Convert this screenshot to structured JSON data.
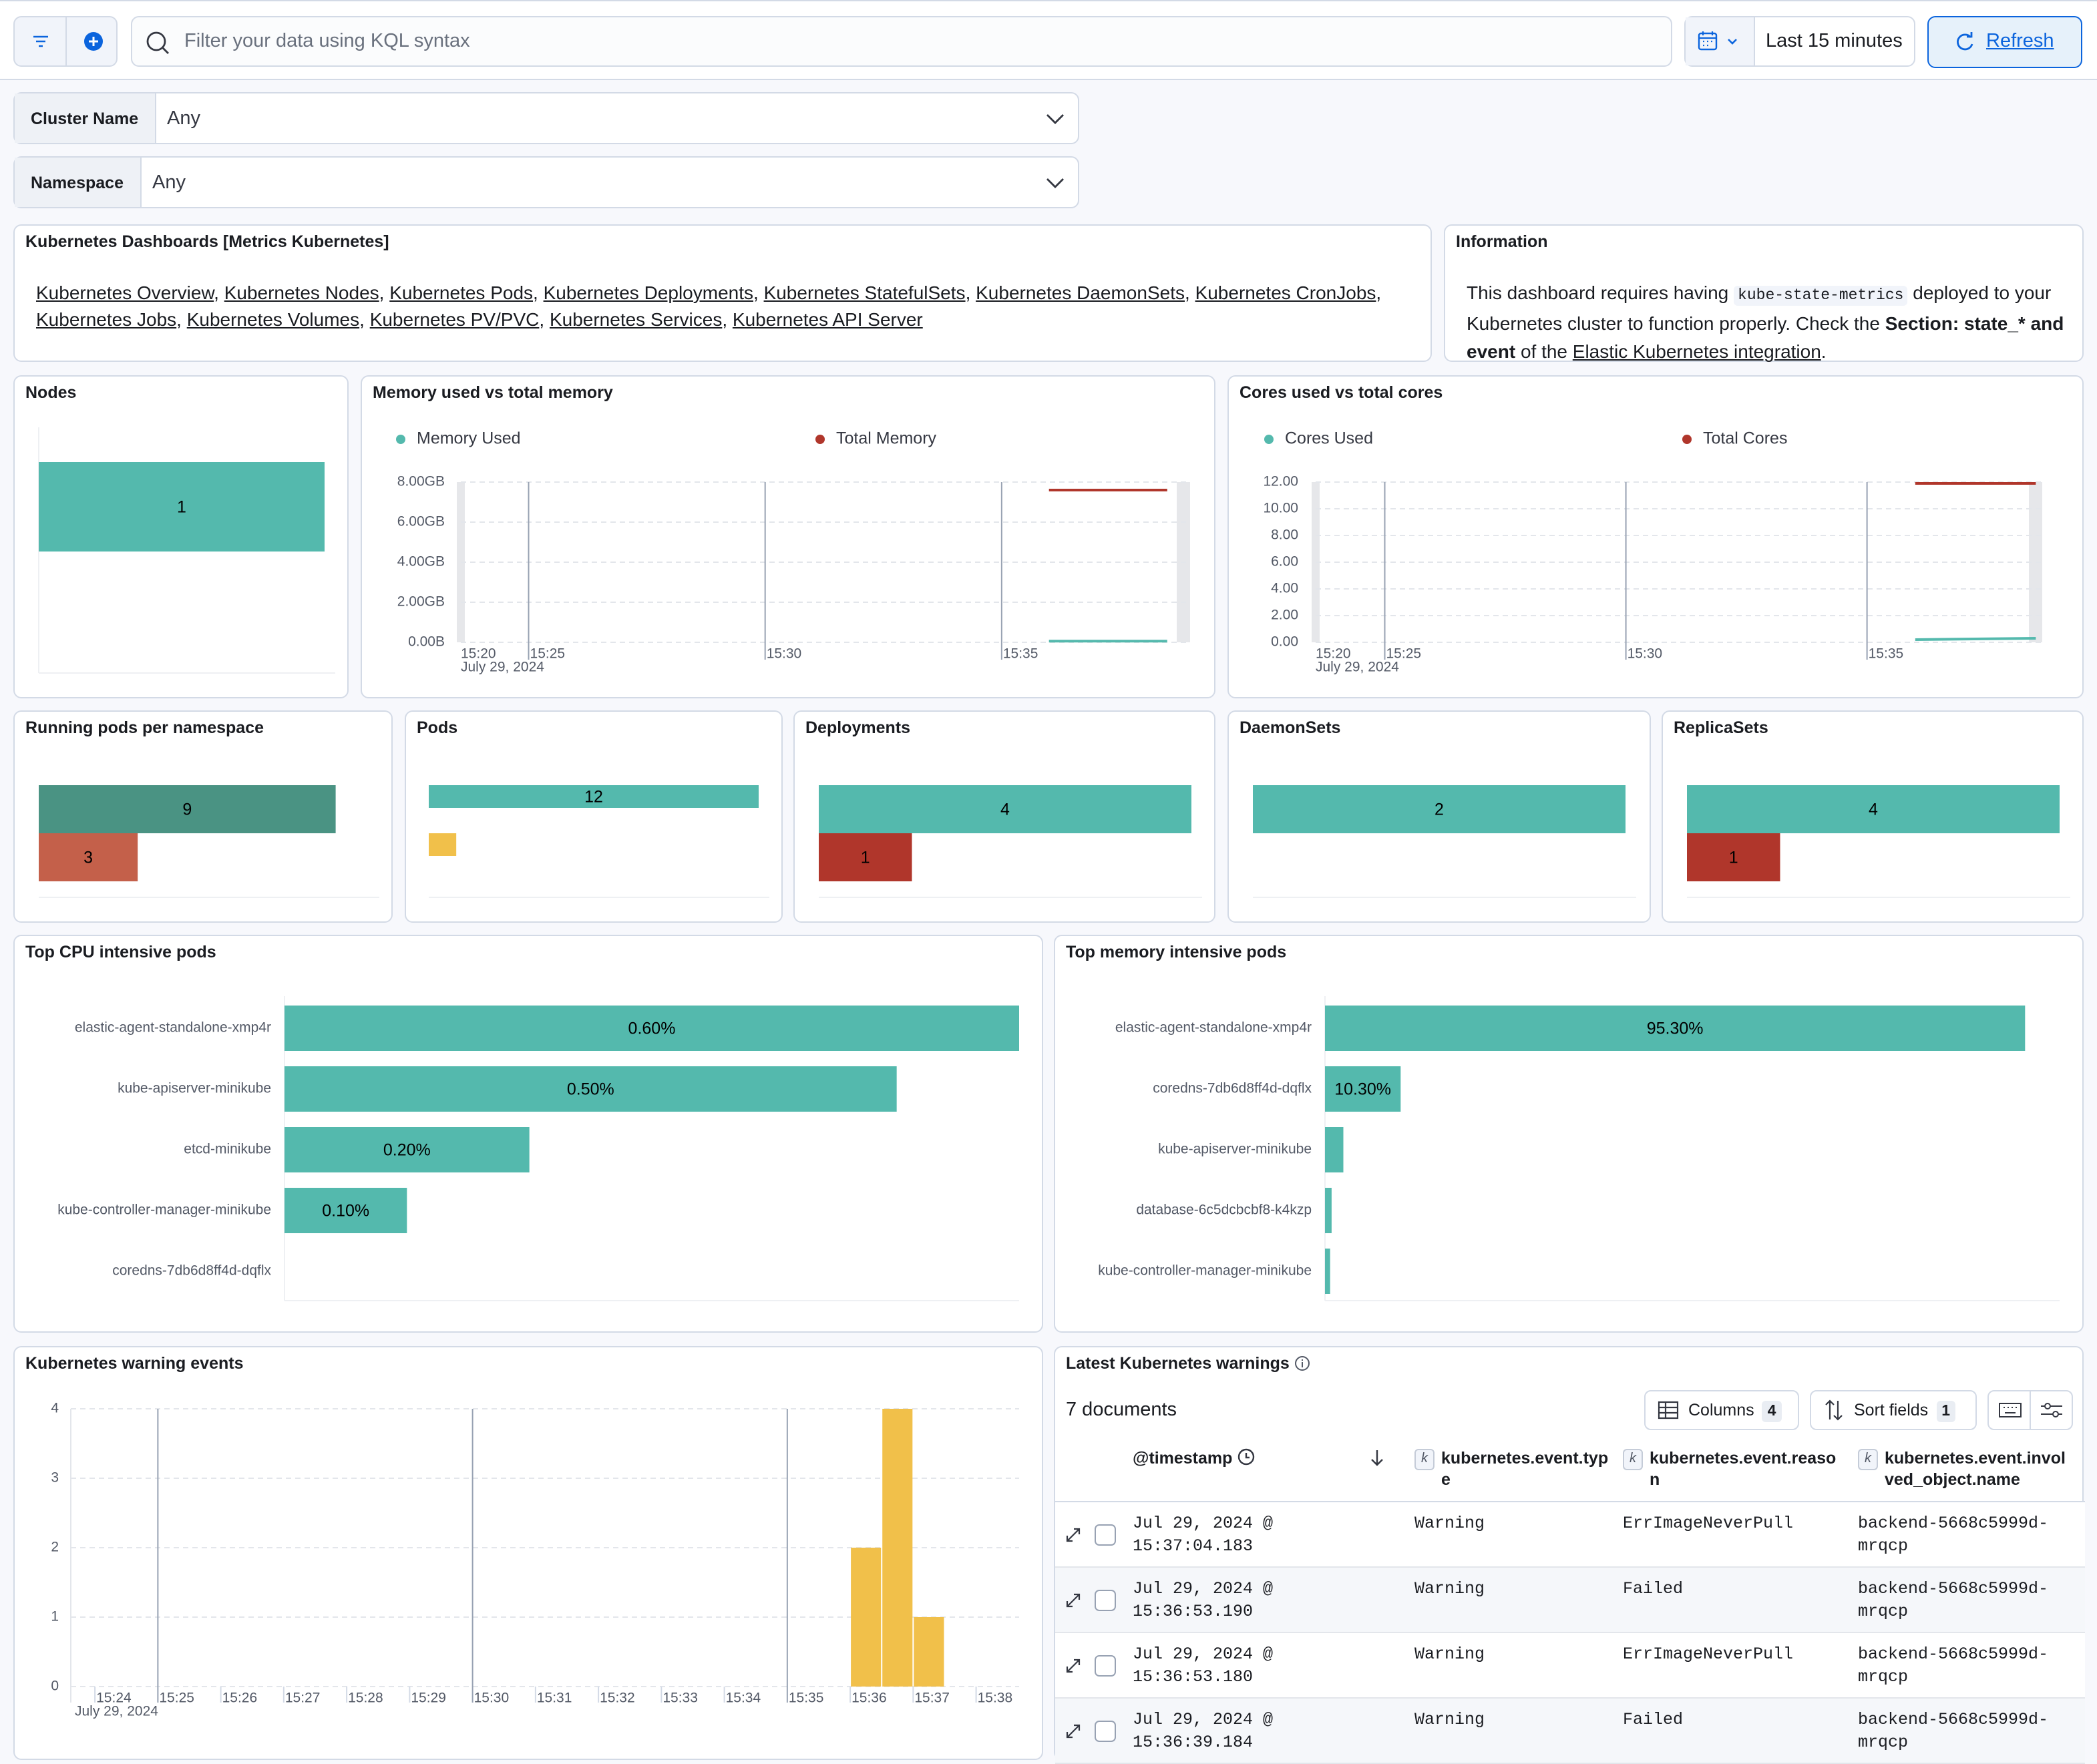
{
  "toolbar": {
    "query_placeholder": "Filter your data using KQL syntax",
    "time_range": "Last 15 minutes",
    "refresh": "Refresh"
  },
  "controls": [
    {
      "label": "Cluster Name",
      "value": "Any"
    },
    {
      "label": "Namespace",
      "value": "Any"
    }
  ],
  "dashboards_panel": {
    "title": "Kubernetes Dashboards [Metrics Kubernetes]",
    "separator": ",",
    "links": [
      "Kubernetes Overview",
      "Kubernetes Nodes",
      "Kubernetes Pods",
      "Kubernetes Deployments",
      "Kubernetes StatefulSets",
      "Kubernetes DaemonSets",
      "Kubernetes CronJobs",
      "Kubernetes Jobs",
      "Kubernetes Volumes",
      "Kubernetes PV/PVC",
      "Kubernetes Services",
      "Kubernetes API Server"
    ]
  },
  "info_panel": {
    "title": "Information",
    "text": [
      "This dashboard requires having",
      "kube-state-metrics",
      "deployed to your Kubernetes cluster to function properly. Check the",
      "Section: state_* and event",
      "of the",
      "Elastic Kubernetes integration",
      "."
    ]
  },
  "nodes_panel": {
    "title": "Nodes",
    "type": "bar",
    "values": [
      1
    ],
    "colors": [
      "#54b9ad"
    ],
    "xlim": [
      0,
      1
    ]
  },
  "memory_panel": {
    "title": "Memory used vs total memory",
    "type": "line",
    "x": [
      "15:36:00",
      "15:38:30"
    ],
    "xlim": [
      "15:23:34",
      "15:38:59"
    ],
    "x_start_label": "15:20",
    "xticks": [
      "15:25",
      "15:30",
      "15:35"
    ],
    "x_date": "July 29, 2024",
    "ylim": [
      0,
      8
    ],
    "yticks": [
      {
        "value": 0,
        "label": "0.00B"
      },
      {
        "value": 2,
        "label": "2.00GB"
      },
      {
        "value": 4,
        "label": "4.00GB"
      },
      {
        "value": 6,
        "label": "6.00GB"
      },
      {
        "value": 8,
        "label": "8.00GB"
      }
    ],
    "series": [
      {
        "name": "Memory Used",
        "color": "#54b9ad",
        "values": [
          0.06,
          0.06
        ]
      },
      {
        "name": "Total Memory",
        "color": "#b0362b",
        "values": [
          7.6,
          7.6
        ]
      }
    ]
  },
  "cores_panel": {
    "title": "Cores used vs total cores",
    "type": "line",
    "x": [
      "15:36:00",
      "15:38:30"
    ],
    "xlim": [
      "15:23:34",
      "15:38:38"
    ],
    "x_start_label": "15:20",
    "xticks": [
      "15:25",
      "15:30",
      "15:35"
    ],
    "x_date": "July 29, 2024",
    "ylim": [
      0,
      12
    ],
    "yticks": [
      {
        "value": 0,
        "label": "0.00"
      },
      {
        "value": 2,
        "label": "2.00"
      },
      {
        "value": 4,
        "label": "4.00"
      },
      {
        "value": 6,
        "label": "6.00"
      },
      {
        "value": 8,
        "label": "8.00"
      },
      {
        "value": 10,
        "label": "10.00"
      },
      {
        "value": 12,
        "label": "12.00"
      }
    ],
    "series": [
      {
        "name": "Cores Used",
        "color": "#54b9ad",
        "values": [
          0.2,
          0.3
        ]
      },
      {
        "name": "Total Cores",
        "color": "#b0362b",
        "values": [
          11.9,
          11.9
        ]
      }
    ]
  },
  "running_pods_panel": {
    "title": "Running pods per namespace",
    "type": "bar",
    "values": [
      9,
      3
    ],
    "colors": [
      "#4a9383",
      "#c4604a"
    ],
    "xlim": [
      0,
      10
    ]
  },
  "pods_panel": {
    "title": "Pods",
    "type": "bar",
    "values": [
      12,
      1
    ],
    "value_labels": [
      "12",
      null
    ],
    "colors": [
      "#54b9ad",
      "#f1c04a"
    ],
    "xlim": [
      0,
      12
    ]
  },
  "deployments_panel": {
    "title": "Deployments",
    "type": "bar",
    "values": [
      4,
      1
    ],
    "colors": [
      "#54b9ad",
      "#b0362b"
    ],
    "xlim": [
      0,
      4
    ]
  },
  "daemonsets_panel": {
    "title": "DaemonSets",
    "type": "bar",
    "values": [
      2
    ],
    "colors": [
      "#54b9ad"
    ],
    "xlim": [
      0,
      2
    ]
  },
  "replicasets_panel": {
    "title": "ReplicaSets",
    "type": "bar",
    "values": [
      4,
      1
    ],
    "colors": [
      "#54b9ad",
      "#b0362b"
    ],
    "xlim": [
      0,
      4
    ]
  },
  "cpu_panel": {
    "title": "Top CPU intensive pods",
    "type": "hbar",
    "color": "#54b9ad",
    "xlim": [
      0,
      0.6
    ],
    "categories": [
      "elastic-agent-standalone-xmp4r",
      "kube-apiserver-minikube",
      "etcd-minikube",
      "kube-controller-manager-minikube",
      "coredns-7db6d8ff4d-dqflx"
    ],
    "values": [
      0.6,
      0.5,
      0.2,
      0.1,
      0
    ],
    "value_labels": [
      "0.60%",
      "0.50%",
      "0.20%",
      "0.10%",
      null
    ]
  },
  "memory_pods_panel": {
    "title": "Top memory intensive pods",
    "type": "hbar",
    "color": "#54b9ad",
    "xlim": [
      0,
      100
    ],
    "categories": [
      "elastic-agent-standalone-xmp4r",
      "coredns-7db6d8ff4d-dqflx",
      "kube-apiserver-minikube",
      "database-6c5dcbcbf8-k4kzp",
      "kube-controller-manager-minikube"
    ],
    "values": [
      95.3,
      10.3,
      2.5,
      0.9,
      0.7
    ],
    "value_labels": [
      "95.30%",
      "10.30%",
      null,
      null,
      null
    ]
  },
  "warning_events_panel": {
    "title": "Kubernetes warning events",
    "type": "histogram",
    "color": "#f1c04a",
    "bins": [
      "15:36:00",
      "15:36:30",
      "15:37:00",
      "15:37:30"
    ],
    "values": [
      2,
      4,
      1
    ],
    "xlim": [
      "15:23:37",
      "15:38:41"
    ],
    "xticks": [
      "15:24",
      "15:25",
      "15:26",
      "15:27",
      "15:28",
      "15:29",
      "15:30",
      "15:31",
      "15:32",
      "15:33",
      "15:34",
      "15:35",
      "15:36",
      "15:37",
      "15:38"
    ],
    "x_date": "July 29, 2024",
    "ylim": [
      0,
      4
    ],
    "yticks": [
      0,
      1,
      2,
      3,
      4
    ],
    "grid": true
  },
  "warnings_table": {
    "title": "Latest Kubernetes warnings",
    "summary": "7 documents",
    "buttons": [
      {
        "label": "Columns",
        "count": 4
      },
      {
        "label": "Sort fields",
        "count": 1
      }
    ],
    "columns": [
      {
        "name": "@timestamp"
      },
      {
        "name": "kubernetes.event.type",
        "type_icon": "k"
      },
      {
        "name": "kubernetes.event.reason",
        "type_icon": "k"
      },
      {
        "name": "kubernetes.event.involved_object.name",
        "type_icon": "k"
      }
    ],
    "rows": [
      [
        "Jul 29, 2024 @ 15:37:04.183",
        "Warning",
        "ErrImageNeverPull",
        "backend-5668c5999d-mrqcp"
      ],
      [
        "Jul 29, 2024 @ 15:36:53.190",
        "Warning",
        "Failed",
        "backend-5668c5999d-mrqcp"
      ],
      [
        "Jul 29, 2024 @ 15:36:53.180",
        "Warning",
        "ErrImageNeverPull",
        "backend-5668c5999d-mrqcp"
      ],
      [
        "Jul 29, 2024 @ 15:36:39.184",
        "Warning",
        "Failed",
        "backend-5668c5999d-mrqcp"
      ]
    ]
  }
}
